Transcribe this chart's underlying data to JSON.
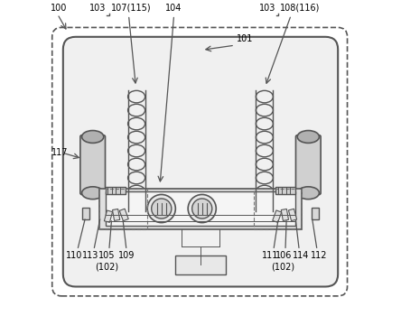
{
  "bg_color": "#ffffff",
  "line_color": "#555555",
  "dashed_color": "#777777",
  "fig_width": 4.44,
  "fig_height": 3.5,
  "dpi": 100
}
